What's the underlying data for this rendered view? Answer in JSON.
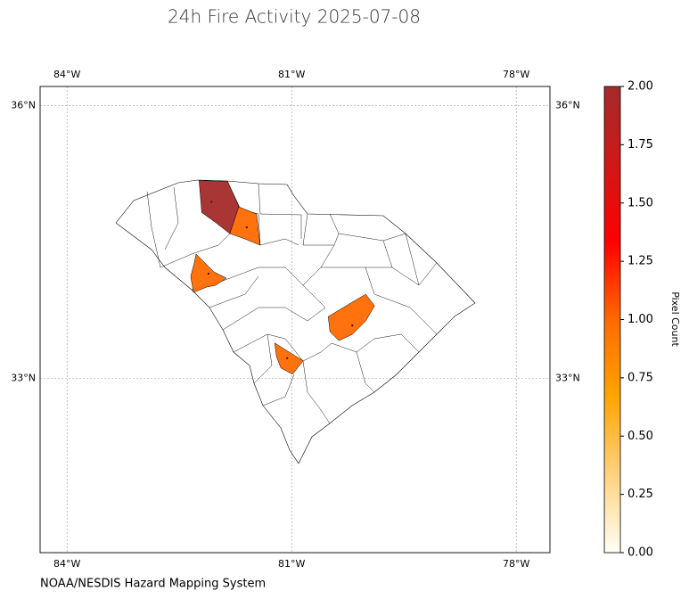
{
  "chart_data": {
    "type": "choropleth",
    "title": "24h Fire Activity 2025-07-08",
    "footer": "NOAA/NESDIS Hazard Mapping System",
    "xlim": [
      -84.36,
      -77.55
    ],
    "ylim": [
      31.08,
      36.21
    ],
    "xticks": [
      {
        "value": -84,
        "label": "84°W"
      },
      {
        "value": -81,
        "label": "81°W"
      },
      {
        "value": -78,
        "label": "78°W"
      }
    ],
    "yticks": [
      {
        "value": 33,
        "label": "33°N"
      },
      {
        "value": 36,
        "label": "36°N"
      }
    ],
    "grid": true,
    "x": [
      -82.07,
      -81.6,
      -82.11,
      -80.19,
      -81.06
    ],
    "y": [
      34.94,
      34.66,
      34.15,
      33.58,
      33.22
    ],
    "values": [
      2,
      1,
      1,
      1,
      1
    ],
    "colorbar": {
      "label": "Pixel Count",
      "lim": [
        0,
        2
      ],
      "ticks": [
        {
          "value": 0,
          "label": "0.00"
        },
        {
          "value": 0.25,
          "label": "0.25"
        },
        {
          "value": 0.5,
          "label": "0.50"
        },
        {
          "value": 0.75,
          "label": "0.75"
        },
        {
          "value": 1,
          "label": "1.00"
        },
        {
          "value": 1.25,
          "label": "1.25"
        },
        {
          "value": 1.5,
          "label": "1.50"
        },
        {
          "value": 1.75,
          "label": "1.75"
        },
        {
          "value": 2,
          "label": "2.00"
        }
      ],
      "colormap": [
        "#fffff5",
        "#ffd27f",
        "#ffa500",
        "#ff6a00",
        "#ff0000",
        "#d01818",
        "#a52a2a"
      ]
    }
  }
}
